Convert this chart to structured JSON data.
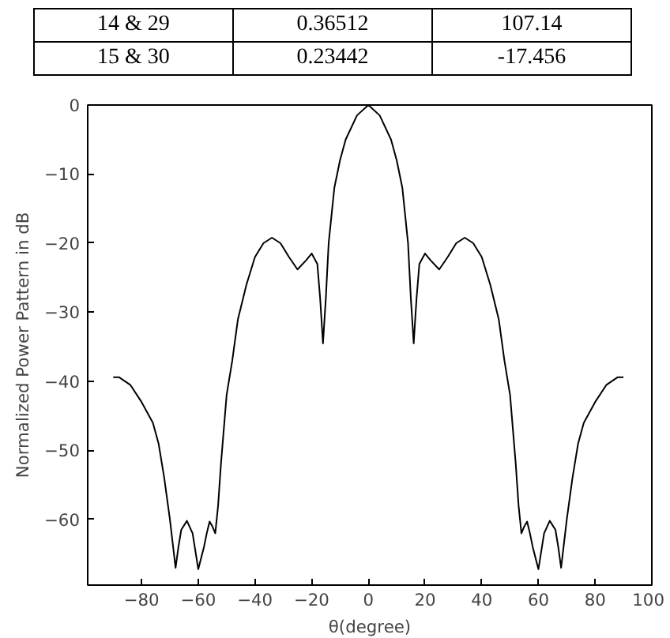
{
  "chart_data": {
    "type": "line",
    "xlabel": "θ(degree)",
    "ylabel": "Normalized Power Pattern in dB",
    "annotations": [
      "14 & 29",
      "0.36512",
      "107.14",
      "15 & 30",
      "0.23442",
      "-17.456"
    ],
    "x": [
      -90,
      -88,
      -84,
      -80,
      -76,
      -74,
      -72,
      -70,
      -68,
      -67,
      -66,
      -64,
      -62,
      -60,
      -58,
      -57,
      -56,
      -55,
      -54,
      -53,
      -52,
      -50,
      -48,
      -46,
      -43,
      -40,
      -37,
      -34,
      -31,
      -28,
      -25,
      -22,
      -20,
      -18,
      -17,
      -16,
      -15,
      -14,
      -12,
      -10,
      -8,
      -4,
      0,
      4,
      8,
      10,
      12,
      14,
      15,
      16,
      17,
      18,
      20,
      22,
      25,
      28,
      31,
      34,
      37,
      40,
      43,
      46,
      48,
      50,
      52,
      53,
      54,
      55,
      56,
      57,
      58,
      60,
      62,
      64,
      66,
      67,
      68,
      70,
      72,
      74,
      76,
      80,
      84,
      88,
      90
    ],
    "series": [
      {
        "color": "#000000",
        "values": [
          -39.4,
          -39.4,
          -40.5,
          -43,
          -46,
          -49,
          -54,
          -60,
          -67,
          -64,
          -61.5,
          -60.2,
          -62,
          -67.2,
          -64,
          -62,
          -60.3,
          -61,
          -62,
          -58,
          -52,
          -42,
          -37,
          -31,
          -26,
          -22,
          -20,
          -19.2,
          -20,
          -22,
          -23.8,
          -22.5,
          -21.5,
          -23,
          -28,
          -34.5,
          -28,
          -20,
          -12,
          -8,
          -5,
          -1.5,
          0,
          -1.5,
          -5,
          -8,
          -12,
          -20,
          -28,
          -34.5,
          -28,
          -23,
          -21.5,
          -22.5,
          -23.8,
          -22,
          -20,
          -19.2,
          -20,
          -22,
          -26,
          -31,
          -37,
          -42,
          -52,
          -58,
          -62,
          -61,
          -60.3,
          -62,
          -64,
          -67.2,
          -62,
          -60.2,
          -61.5,
          -64,
          -67,
          -60,
          -54,
          -49,
          -46,
          -43,
          -40.5,
          -39.4,
          -39.4
        ]
      }
    ],
    "xlim": [
      -99,
      100
    ],
    "ylim": [
      -69.5,
      0
    ],
    "xticks": [
      -80,
      -60,
      -40,
      -20,
      0,
      20,
      40,
      60,
      80,
      100
    ],
    "yticks": [
      -60,
      -50,
      -40,
      -30,
      -20,
      -10,
      0
    ],
    "grid": false,
    "marker": "none",
    "line_style": "solid"
  }
}
